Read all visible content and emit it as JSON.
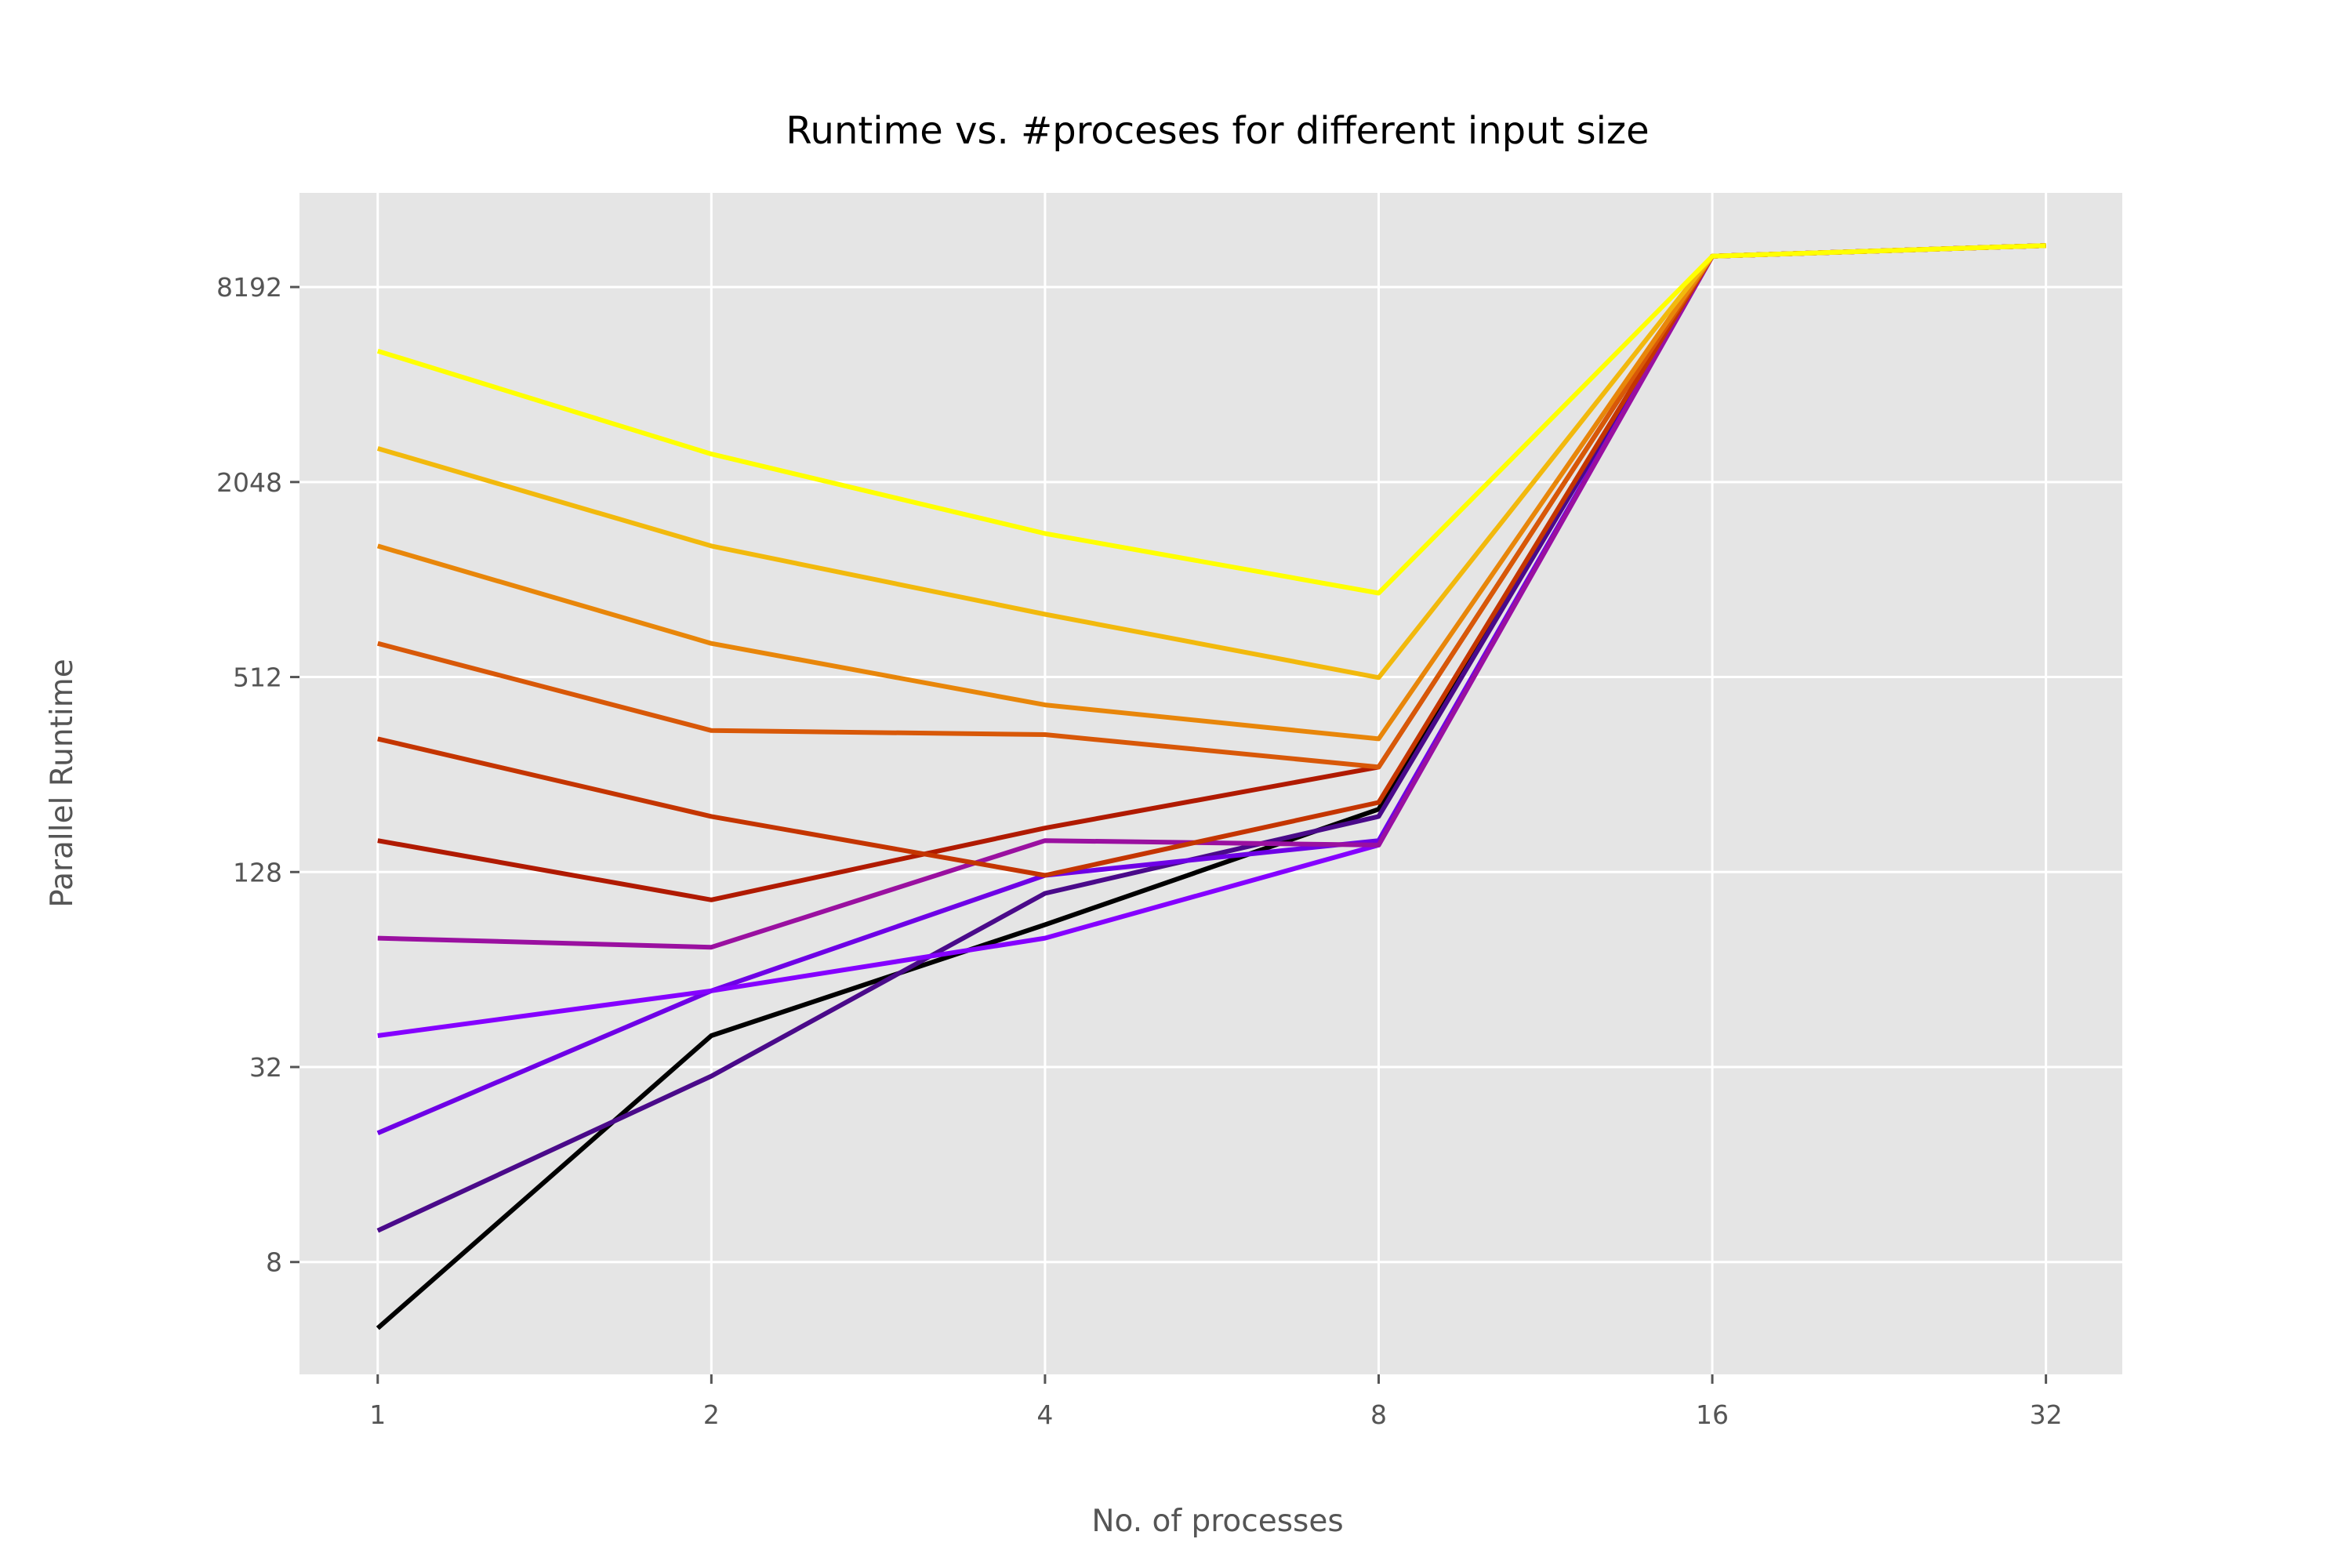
{
  "chart_data": {
    "type": "line",
    "title": "Runtime vs. #proceses for different input size",
    "xlabel": "No. of processes",
    "ylabel": "Parallel Runtime",
    "x": [
      1,
      2,
      4,
      8,
      16,
      32
    ],
    "x_scale": "log2",
    "y_scale": "log2",
    "xlim": [
      0.85,
      37.5
    ],
    "ylim": [
      3.6,
      16000
    ],
    "x_ticks": [
      1,
      2,
      4,
      8,
      16,
      32
    ],
    "x_tick_labels": [
      "1",
      "2",
      "4",
      "8",
      "16",
      "32"
    ],
    "y_ticks": [
      8,
      32,
      128,
      512,
      2048,
      8192
    ],
    "y_tick_labels": [
      "8",
      "32",
      "128",
      "512",
      "2048",
      "8192"
    ],
    "grid": true,
    "background_color": "#e5e5e5",
    "series": [
      {
        "color": "#000000",
        "values": [
          5,
          40,
          88,
          200,
          10200,
          11000
        ]
      },
      {
        "color": "#4a0a8a",
        "values": [
          10,
          30,
          110,
          190,
          10200,
          11000
        ]
      },
      {
        "color": "#6e00e6",
        "values": [
          20,
          55,
          125,
          160,
          10200,
          11000
        ]
      },
      {
        "color": "#8500ff",
        "values": [
          40,
          55,
          80,
          155,
          10200,
          11000
        ]
      },
      {
        "color": "#9a10a0",
        "values": [
          80,
          75,
          160,
          155,
          10200,
          11000
        ]
      },
      {
        "color": "#b01a00",
        "values": [
          160,
          105,
          175,
          270,
          10200,
          11000
        ]
      },
      {
        "color": "#c43500",
        "values": [
          330,
          190,
          125,
          210,
          10200,
          11000
        ]
      },
      {
        "color": "#d85808",
        "values": [
          650,
          350,
          340,
          270,
          10200,
          11000
        ]
      },
      {
        "color": "#e8860a",
        "values": [
          1300,
          650,
          420,
          330,
          10200,
          11000
        ]
      },
      {
        "color": "#f2b90d",
        "values": [
          2600,
          1300,
          800,
          510,
          10200,
          11000
        ]
      },
      {
        "color": "#ffff00",
        "values": [
          5200,
          2500,
          1420,
          930,
          10200,
          11000
        ]
      }
    ]
  }
}
